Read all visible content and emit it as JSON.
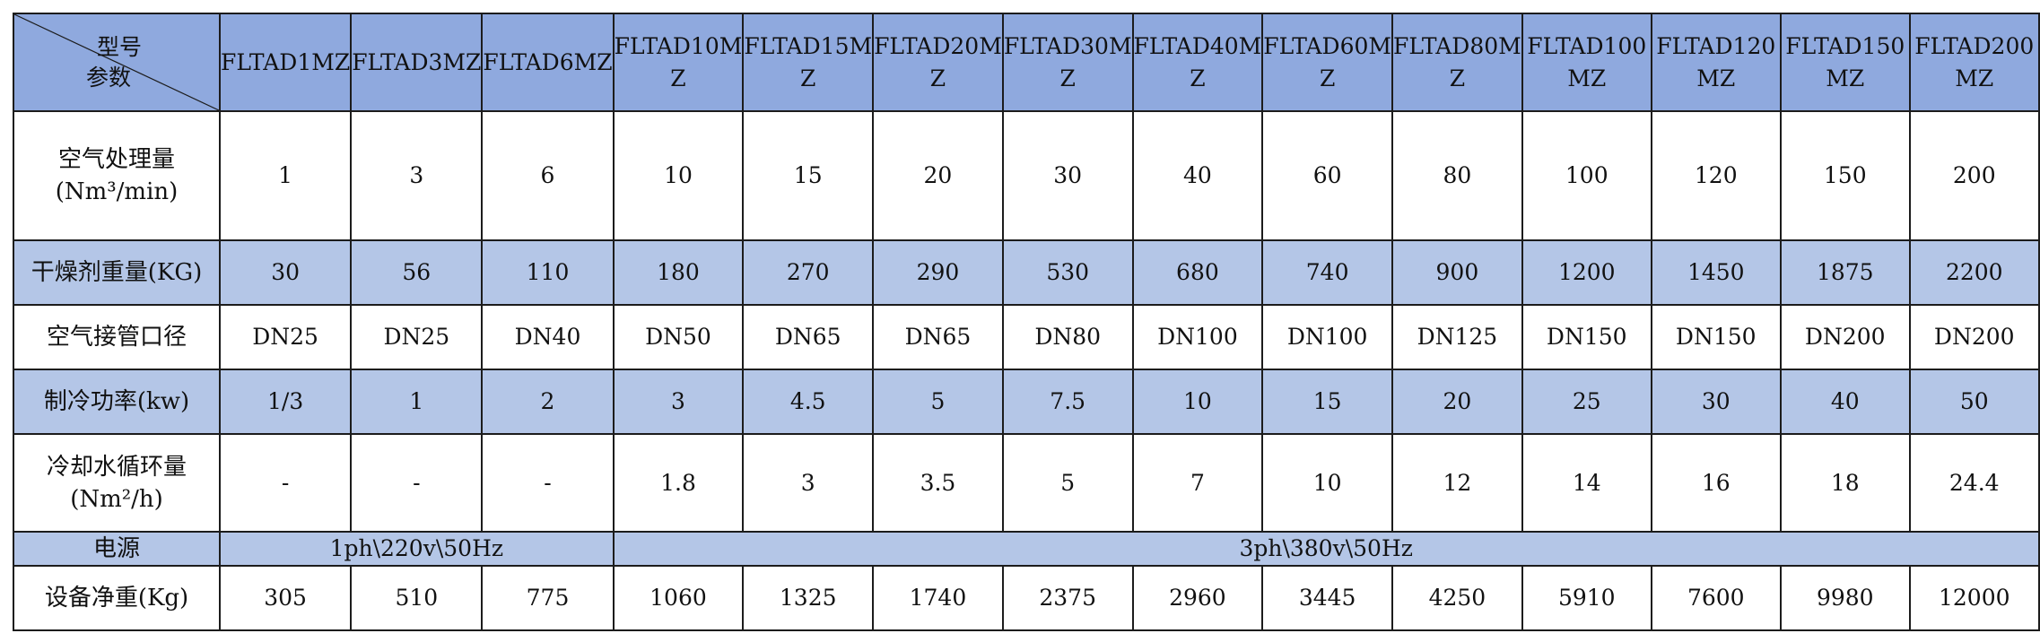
{
  "header": {
    "corner_top": "型号",
    "corner_bottom": "参数",
    "models": [
      [
        "FLTAD1MZ"
      ],
      [
        "FLTAD3MZ"
      ],
      [
        "FLTAD6MZ"
      ],
      [
        "FLTAD10M",
        "Z"
      ],
      [
        "FLTAD15M",
        "Z"
      ],
      [
        "FLTAD20M",
        "Z"
      ],
      [
        "FLTAD30M",
        "Z"
      ],
      [
        "FLTAD40M",
        "Z"
      ],
      [
        "FLTAD60M",
        "Z"
      ],
      [
        "FLTAD80M",
        "Z"
      ],
      [
        "FLTAD100",
        "MZ"
      ],
      [
        "FLTAD120",
        "MZ"
      ],
      [
        "FLTAD150",
        "MZ"
      ],
      [
        "FLTAD200",
        "MZ"
      ]
    ]
  },
  "rows": {
    "air_flow": {
      "label": "空气处理量",
      "unit": "(Nm³/min)",
      "values": [
        "1",
        "3",
        "6",
        "10",
        "15",
        "20",
        "30",
        "40",
        "60",
        "80",
        "100",
        "120",
        "150",
        "200"
      ]
    },
    "desiccant": {
      "label": "干燥剂重量(KG)",
      "values": [
        "30",
        "56",
        "110",
        "180",
        "270",
        "290",
        "530",
        "680",
        "740",
        "900",
        "1200",
        "1450",
        "1875",
        "2200"
      ]
    },
    "pipe": {
      "label": "空气接管口径",
      "values": [
        "DN25",
        "DN25",
        "DN40",
        "DN50",
        "DN65",
        "DN65",
        "DN80",
        "DN100",
        "DN100",
        "DN125",
        "DN150",
        "DN150",
        "DN200",
        "DN200"
      ]
    },
    "cooling": {
      "label": "制冷功率(kw)",
      "values": [
        "1/3",
        "1",
        "2",
        "3",
        "4.5",
        "5",
        "7.5",
        "10",
        "15",
        "20",
        "25",
        "30",
        "40",
        "50"
      ]
    },
    "water": {
      "label": "冷却水循环量",
      "unit": "(Nm²/h)",
      "values": [
        "-",
        "-",
        "-",
        "1.8",
        "3",
        "3.5",
        "5",
        "7",
        "10",
        "12",
        "14",
        "16",
        "18",
        "24.4"
      ]
    },
    "power": {
      "label": "电源",
      "single": "1ph\\220v\\50Hz",
      "three": "3ph\\380v\\50Hz"
    },
    "weight": {
      "label": "设备净重(Kg)",
      "values": [
        "305",
        "510",
        "775",
        "1060",
        "1325",
        "1740",
        "2375",
        "2960",
        "3445",
        "4250",
        "5910",
        "7600",
        "9980",
        "12000"
      ]
    }
  }
}
